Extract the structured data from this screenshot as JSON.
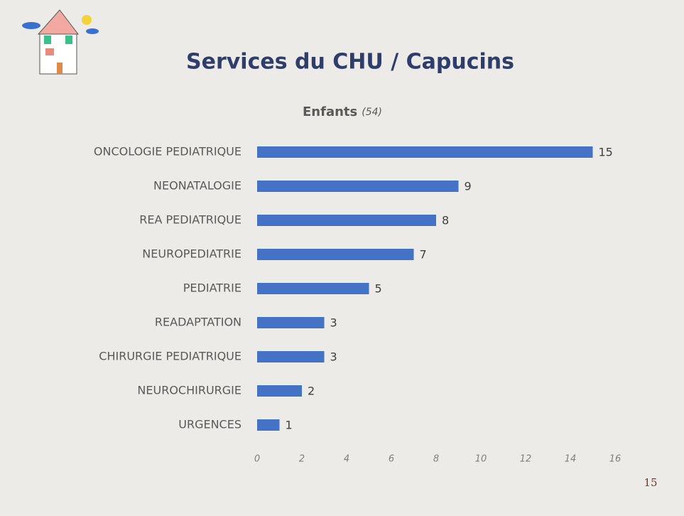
{
  "title": "Services du CHU / Capucins",
  "page_number": "15",
  "chart_data": {
    "type": "bar",
    "orientation": "horizontal",
    "title": "Enfants",
    "subtitle": "(54)",
    "categories": [
      "ONCOLOGIE PEDIATRIQUE",
      "NEONATALOGIE",
      "REA PEDIATRIQUE",
      "NEUROPEDIATRIE",
      "PEDIATRIE",
      "READAPTATION",
      "CHIRURGIE PEDIATRIQUE",
      "NEUROCHIRURGIE",
      "URGENCES"
    ],
    "values": [
      15,
      9,
      8,
      7,
      5,
      3,
      3,
      2,
      1
    ],
    "color": "#4472c4",
    "xlim": [
      0,
      16
    ],
    "xticks": [
      0,
      2,
      4,
      6,
      8,
      10,
      12,
      14,
      16
    ]
  }
}
